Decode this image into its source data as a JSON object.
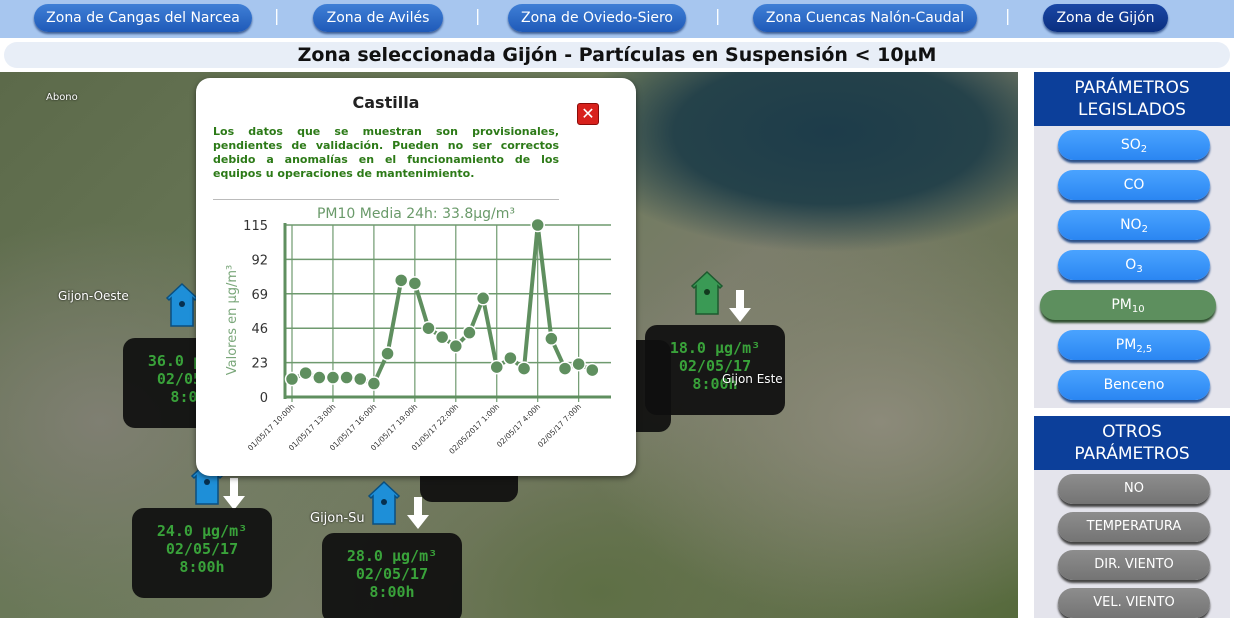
{
  "nav": {
    "zones": [
      {
        "label": "Zona de Cangas del Narcea",
        "selected": false
      },
      {
        "label": "Zona de Avilés",
        "selected": false
      },
      {
        "label": "Zona de Oviedo-Siero",
        "selected": false
      },
      {
        "label": "Zona Cuencas Nalón-Caudal",
        "selected": false
      },
      {
        "label": "Zona de Gijón",
        "selected": true
      }
    ],
    "separator": "|"
  },
  "title": "Zona seleccionada Gijón - Partículas en Suspensión < 10µM",
  "map": {
    "labels": [
      "Abono",
      "Gijon-Oeste",
      "Gijon-Su",
      "Gijon Este"
    ],
    "stations": [
      {
        "value": "36.0 µg/m³",
        "date": "02/05/17",
        "time": "8:00h",
        "color": "#1e8fd8"
      },
      {
        "value": "18.0 µg/m³",
        "date": "02/05/17",
        "time": "8:00h",
        "color": "#3a9a55"
      },
      {
        "value": "24.0 µg/m³",
        "date": "02/05/17",
        "time": "8:00h",
        "color": "#1e8fd8"
      },
      {
        "value": "28.0 µg/m³",
        "date": "02/05/17",
        "time": "8:00h",
        "color": "#1e8fd8"
      }
    ]
  },
  "popup": {
    "title": "Castilla",
    "close": "✕",
    "note": "Los datos que se muestran son provisionales, pendientes de validación. Pueden no ser correctos debido a anomalías en el funcionamiento de los equipos u operaciones de mantenimiento."
  },
  "chart_data": {
    "type": "line",
    "title": "PM10 Media 24h: 33.8µg/m³",
    "ylabel": "Valores en µg/m³",
    "xlabel": "",
    "ylim": [
      0,
      115
    ],
    "yticks": [
      0,
      23,
      46,
      69,
      92,
      115
    ],
    "xticks": [
      "01/05/17 10:00h",
      "01/05/17 13:00h",
      "01/05/17 16:00h",
      "01/05/17 19:00h",
      "01/05/17 22:00h",
      "02/05/2017 1:00h",
      "02/05/17 4:00h",
      "02/05/17 7:00h"
    ],
    "x": [
      "01/05/17 10:00",
      "01/05/17 11:00",
      "01/05/17 12:00",
      "01/05/17 13:00",
      "01/05/17 14:00",
      "01/05/17 15:00",
      "01/05/17 16:00",
      "01/05/17 17:00",
      "01/05/17 18:00",
      "01/05/17 19:00",
      "01/05/17 20:00",
      "01/05/17 21:00",
      "01/05/17 22:00",
      "01/05/17 23:00",
      "02/05/17 0:00",
      "02/05/17 1:00",
      "02/05/17 2:00",
      "02/05/17 3:00",
      "02/05/17 4:00",
      "02/05/17 5:00",
      "02/05/17 6:00",
      "02/05/17 7:00",
      "02/05/17 8:00"
    ],
    "values": [
      12,
      16,
      13,
      13,
      13,
      12,
      9,
      29,
      78,
      76,
      46,
      40,
      34,
      43,
      66,
      20,
      26,
      19,
      115,
      39,
      19,
      22,
      18
    ],
    "grid": true,
    "color": "#5f8f5f"
  },
  "sidebar": {
    "legislados": {
      "title": "PARÁMETROS LEGISLADOS",
      "items": [
        {
          "label": "SO",
          "sub": "2",
          "active": false
        },
        {
          "label": "CO",
          "sub": "",
          "active": false
        },
        {
          "label": "NO",
          "sub": "2",
          "active": false
        },
        {
          "label": "O",
          "sub": "3",
          "active": false
        },
        {
          "label": "PM",
          "sub": "10",
          "active": true
        },
        {
          "label": "PM",
          "sub": "2,5",
          "active": false
        },
        {
          "label": "Benceno",
          "sub": "",
          "active": false
        }
      ]
    },
    "otros": {
      "title": "OTROS PARÁMETROS",
      "items": [
        {
          "label": "NO"
        },
        {
          "label": "TEMPERATURA"
        },
        {
          "label": "DIR. VIENTO"
        },
        {
          "label": "VEL. VIENTO"
        }
      ]
    }
  }
}
